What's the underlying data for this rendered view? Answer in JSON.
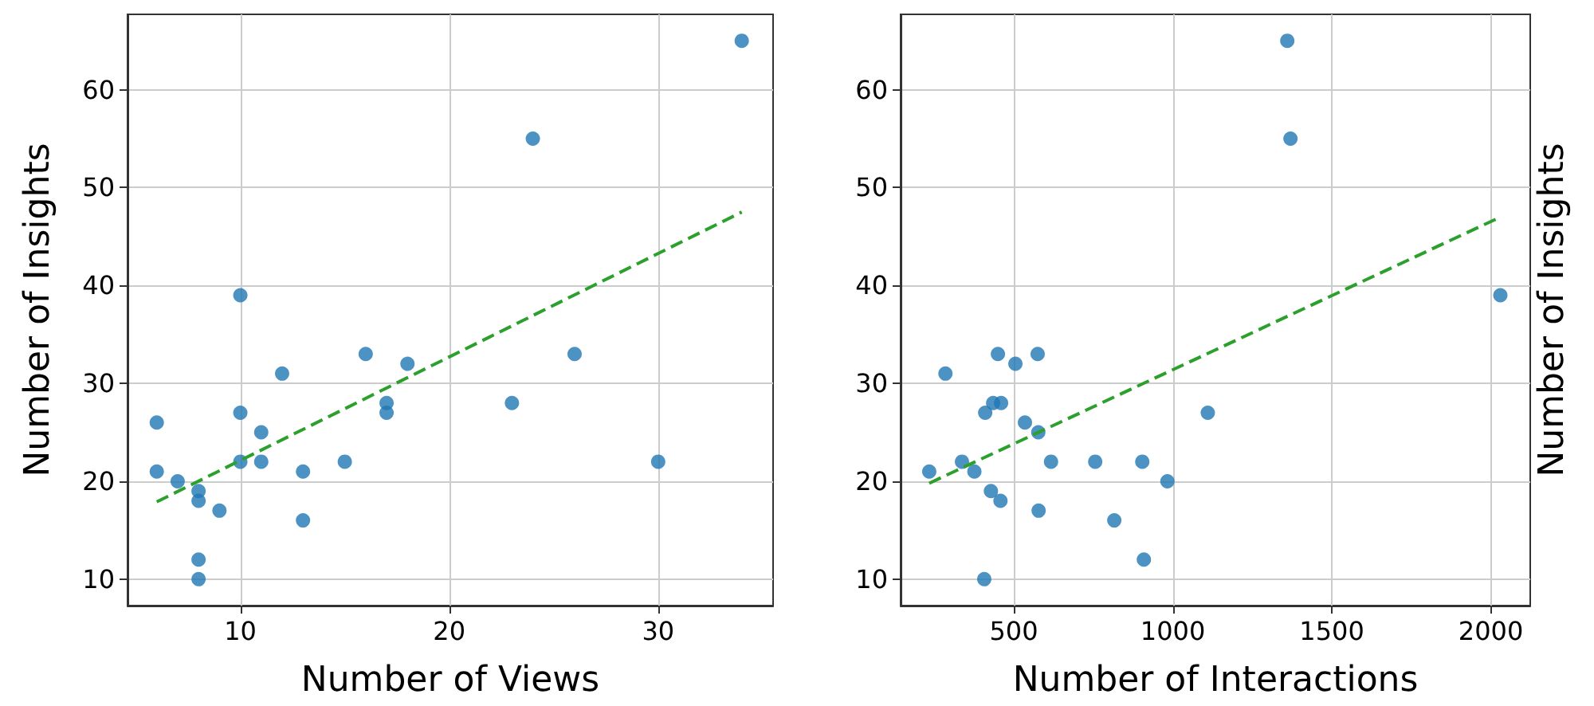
{
  "chart_data": [
    {
      "type": "scatter",
      "xlabel": "Number of Views",
      "ylabel": "Number of Insights",
      "xlim": [
        4.6,
        35.5
      ],
      "xticks": [
        10,
        20,
        30
      ],
      "ylim": [
        7.3,
        67.7
      ],
      "yticks": [
        10,
        20,
        30,
        40,
        50,
        60
      ],
      "grid": true,
      "series": [
        {
          "color": "#1f77b4",
          "marker": "circle",
          "x": [
            34,
            24,
            10,
            16,
            26,
            18,
            12,
            17,
            23,
            17,
            10,
            6,
            11,
            10,
            11,
            15,
            30,
            6,
            13,
            7,
            8,
            8,
            9,
            13,
            8,
            8
          ],
          "values": [
            65,
            55,
            39,
            33,
            33,
            32,
            31,
            28,
            28,
            27,
            27,
            26,
            25,
            22,
            22,
            22,
            22,
            21,
            21,
            20,
            19,
            18,
            17,
            16,
            12,
            10
          ]
        },
        {
          "type": "line",
          "color": "#2ca02c",
          "marker": "none",
          "line_style": "dashed",
          "x": [
            6,
            34
          ],
          "values": [
            17.9,
            47.5
          ]
        }
      ]
    },
    {
      "type": "scatter",
      "xlabel": "Number of Interactions",
      "ylabel": "Number of Insights",
      "xlim": [
        144,
        2124
      ],
      "xticks": [
        500,
        1000,
        1500,
        2000
      ],
      "ylim": [
        7.3,
        67.7
      ],
      "yticks": [
        10,
        20,
        30,
        40,
        50,
        60
      ],
      "grid": true,
      "series": [
        {
          "color": "#1f77b4",
          "marker": "circle",
          "x": [
            1360,
            1370,
            2030,
            450,
            575,
            505,
            285,
            435,
            460,
            410,
            1110,
            535,
            577,
            337,
            617,
            756,
            904,
            234,
            376,
            983,
            428,
            458,
            578,
            816,
            909,
            407
          ],
          "values": [
            65,
            55,
            39,
            33,
            33,
            32,
            31,
            28,
            28,
            27,
            27,
            26,
            25,
            22,
            22,
            22,
            22,
            21,
            21,
            20,
            19,
            18,
            17,
            16,
            12,
            10
          ]
        },
        {
          "type": "line",
          "color": "#2ca02c",
          "marker": "none",
          "line_style": "dashed",
          "x": [
            234,
            2031
          ],
          "values": [
            19.8,
            47.0
          ]
        }
      ]
    }
  ]
}
